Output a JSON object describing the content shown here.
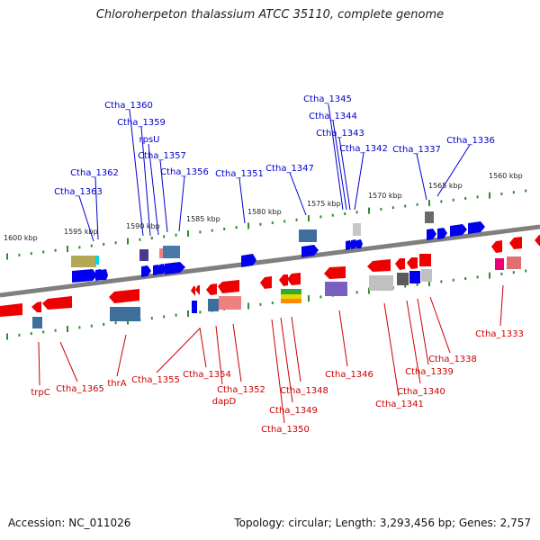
{
  "title": "Chloroherpeton thalassium ATCC 35110, complete genome",
  "footer": {
    "accession": "Accession: NC_011026",
    "stats": "Topology: circular; Length: 3,293,456 bp; Genes: 2,757"
  },
  "scale_labels": [
    "1600 kbp",
    "1595 kbp",
    "1590 kbp",
    "1585 kbp",
    "1580 kbp",
    "1575 kbp",
    "1570 kbp",
    "1565 kbp",
    "1560 kbp"
  ],
  "top_labels": [
    "Ctha_1360",
    "Ctha_1359",
    "rpsU",
    "Ctha_1357",
    "Ctha_1356",
    "Ctha_1362",
    "Ctha_1363",
    "Ctha_1351",
    "Ctha_1347",
    "Ctha_1345",
    "Ctha_1344",
    "Ctha_1343",
    "Ctha_1342",
    "Ctha_1337",
    "Ctha_1336"
  ],
  "bottom_labels": [
    "trpC",
    "Ctha_1365",
    "thrA",
    "Ctha_1355",
    "Ctha_1354",
    "Ctha_1352",
    "dapD",
    "Ctha_1348",
    "Ctha_1349",
    "Ctha_1350",
    "Ctha_1346",
    "Ctha_1341",
    "Ctha_1340",
    "Ctha_1339",
    "Ctha_1338",
    "Ctha_1333"
  ],
  "colors": {
    "forward_gene": "#0000ee",
    "reverse_gene": "#ee0000",
    "forward_label": "#0000cc",
    "reverse_label": "#cc0000",
    "backbone": "#808080",
    "tick": "#2e8b2e"
  }
}
